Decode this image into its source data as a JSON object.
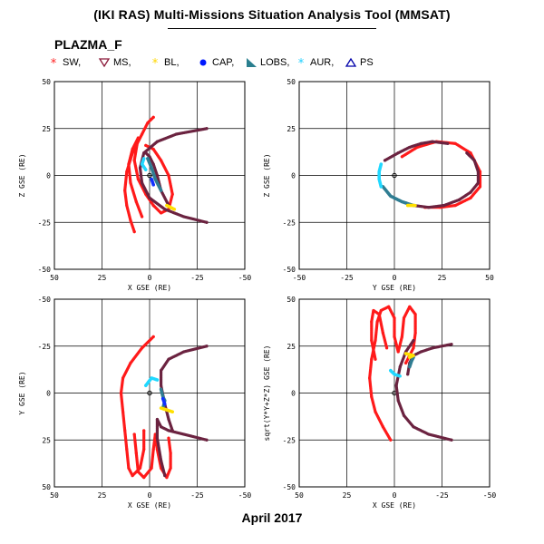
{
  "header": {
    "title": "(IKI RAS) Multi-Missions Situation Analysis Tool (MMSAT)",
    "instrument": "PLAZMA_F",
    "date": "April 2017"
  },
  "legend": [
    {
      "symbol": "star",
      "label": "SW,",
      "color": "#ff2020"
    },
    {
      "symbol": "triangle-down",
      "label": "MS,",
      "color": "#8b1a3a"
    },
    {
      "symbol": "star",
      "label": "BL,",
      "color": "#ffd700"
    },
    {
      "symbol": "dot",
      "label": "CAP,",
      "color": "#0018ff"
    },
    {
      "symbol": "wedge",
      "label": "LOBS,",
      "color": "#2a7f8f"
    },
    {
      "symbol": "asterisk",
      "label": "AUR,",
      "color": "#20d0ff"
    },
    {
      "symbol": "triangle-up",
      "label": "PS",
      "color": "#0000aa"
    }
  ],
  "chart_data": [
    {
      "type": "scatter",
      "xlabel": "X GSE (RE)",
      "ylabel": "Z GSE (RE)",
      "xlim": [
        50,
        -50
      ],
      "ylim": [
        -50,
        50
      ],
      "xticks": [
        50,
        25,
        0,
        -25,
        -50
      ],
      "yticks": [
        -50,
        -25,
        0,
        25,
        50
      ],
      "grid": true,
      "series": [
        {
          "class": "SW",
          "points": [
            [
              8,
              -30
            ],
            [
              10,
              -24
            ],
            [
              12,
              -16
            ],
            [
              13,
              -8
            ],
            [
              12,
              2
            ],
            [
              9,
              12
            ],
            [
              4,
              22
            ],
            [
              1,
              28
            ],
            [
              -2,
              31
            ]
          ]
        },
        {
          "class": "SW",
          "points": [
            [
              4,
              -22
            ],
            [
              7,
              -14
            ],
            [
              10,
              -4
            ],
            [
              11,
              6
            ],
            [
              9,
              14
            ],
            [
              6,
              20
            ],
            [
              8,
              8
            ],
            [
              6,
              -2
            ],
            [
              2,
              -10
            ],
            [
              -2,
              -16
            ],
            [
              -6,
              -20
            ],
            [
              -10,
              -18
            ],
            [
              -12,
              -10
            ],
            [
              -10,
              0
            ],
            [
              -6,
              8
            ],
            [
              -2,
              14
            ],
            [
              2,
              16
            ]
          ]
        },
        {
          "class": "MS",
          "points": [
            [
              -30,
              -25
            ],
            [
              -18,
              -22
            ],
            [
              -8,
              -18
            ],
            [
              0,
              -12
            ],
            [
              4,
              -4
            ],
            [
              5,
              4
            ],
            [
              3,
              12
            ],
            [
              -4,
              18
            ],
            [
              -14,
              22
            ],
            [
              -30,
              25
            ]
          ]
        },
        {
          "class": "MS",
          "points": [
            [
              -10,
              -16
            ],
            [
              -6,
              -8
            ],
            [
              -4,
              0
            ],
            [
              -2,
              6
            ],
            [
              0,
              10
            ],
            [
              2,
              12
            ]
          ]
        },
        {
          "class": "LOBS",
          "points": [
            [
              -6,
              -8
            ],
            [
              -3,
              -2
            ],
            [
              -1,
              4
            ],
            [
              1,
              9
            ]
          ]
        },
        {
          "class": "AUR",
          "points": [
            [
              3,
              9
            ],
            [
              4,
              6
            ],
            [
              2,
              3
            ]
          ]
        },
        {
          "class": "CAP",
          "points": [
            [
              -1,
              -2
            ],
            [
              -2,
              -5
            ]
          ]
        },
        {
          "class": "BL",
          "points": [
            [
              -9,
              -16
            ],
            [
              -11,
              -17
            ],
            [
              -13,
              -18
            ]
          ]
        }
      ]
    },
    {
      "type": "scatter",
      "xlabel": "Y GSE (RE)",
      "ylabel": "Z GSE (RE)",
      "xlim": [
        -50,
        50
      ],
      "ylim": [
        -50,
        50
      ],
      "xticks": [
        -50,
        -25,
        0,
        25,
        50
      ],
      "yticks": [
        -50,
        -25,
        0,
        25,
        50
      ],
      "grid": true,
      "series": [
        {
          "class": "SW",
          "points": [
            [
              4,
              10
            ],
            [
              12,
              15
            ],
            [
              22,
              18
            ],
            [
              32,
              17
            ],
            [
              40,
              12
            ],
            [
              45,
              2
            ],
            [
              45,
              -6
            ],
            [
              40,
              -12
            ],
            [
              32,
              -16
            ],
            [
              24,
              -17
            ],
            [
              16,
              -17
            ]
          ]
        },
        {
          "class": "MS",
          "points": [
            [
              -5,
              8
            ],
            [
              2,
              12
            ],
            [
              8,
              15
            ],
            [
              14,
              17
            ],
            [
              20,
              18
            ],
            [
              28,
              17
            ]
          ]
        },
        {
          "class": "MS",
          "points": [
            [
              10,
              -16
            ],
            [
              18,
              -17
            ],
            [
              26,
              -16
            ],
            [
              34,
              -13
            ],
            [
              40,
              -9
            ],
            [
              44,
              -4
            ],
            [
              44,
              2
            ],
            [
              42,
              8
            ],
            [
              38,
              12
            ]
          ]
        },
        {
          "class": "LOBS",
          "points": [
            [
              -6,
              -6
            ],
            [
              -2,
              -11
            ],
            [
              4,
              -14
            ],
            [
              10,
              -16
            ]
          ]
        },
        {
          "class": "AUR",
          "points": [
            [
              -7,
              6
            ],
            [
              -8,
              2
            ],
            [
              -8,
              -2
            ],
            [
              -7,
              -6
            ]
          ]
        },
        {
          "class": "BL",
          "points": [
            [
              7,
              -16
            ],
            [
              11,
              -16
            ]
          ]
        }
      ]
    },
    {
      "type": "scatter",
      "xlabel": "X GSE (RE)",
      "ylabel": "Y GSE (RE)",
      "xlim": [
        50,
        -50
      ],
      "ylim": [
        50,
        -50
      ],
      "xticks": [
        50,
        25,
        0,
        -25,
        -50
      ],
      "yticks": [
        -50,
        -25,
        0,
        25,
        50
      ],
      "grid": true,
      "series": [
        {
          "class": "SW",
          "points": [
            [
              -2,
              -30
            ],
            [
              4,
              -24
            ],
            [
              10,
              -16
            ],
            [
              14,
              -8
            ],
            [
              15,
              0
            ],
            [
              14,
              10
            ],
            [
              13,
              20
            ],
            [
              12,
              30
            ],
            [
              11,
              40
            ],
            [
              9,
              44
            ],
            [
              5,
              40
            ],
            [
              3,
              30
            ],
            [
              3,
              20
            ]
          ]
        },
        {
          "class": "SW",
          "points": [
            [
              8,
              22
            ],
            [
              7,
              32
            ],
            [
              6,
              42
            ],
            [
              3,
              45
            ],
            [
              -1,
              40
            ],
            [
              -2,
              30
            ],
            [
              -3,
              22
            ],
            [
              -4,
              30
            ],
            [
              -6,
              40
            ],
            [
              -9,
              45
            ],
            [
              -11,
              40
            ],
            [
              -11,
              32
            ],
            [
              -10,
              24
            ]
          ]
        },
        {
          "class": "MS",
          "points": [
            [
              -30,
              -25
            ],
            [
              -18,
              -22
            ],
            [
              -10,
              -18
            ],
            [
              -6,
              -12
            ],
            [
              -6,
              -4
            ],
            [
              -8,
              6
            ],
            [
              -10,
              14
            ],
            [
              -12,
              20
            ]
          ]
        },
        {
          "class": "MS",
          "points": [
            [
              -30,
              25
            ],
            [
              -18,
              22
            ],
            [
              -10,
              20
            ],
            [
              -6,
              18
            ],
            [
              -4,
              14
            ],
            [
              -4,
              24
            ],
            [
              -6,
              36
            ],
            [
              -8,
              44
            ]
          ]
        },
        {
          "class": "AUR",
          "points": [
            [
              2,
              -4
            ],
            [
              -1,
              -8
            ],
            [
              -4,
              -7
            ]
          ]
        },
        {
          "class": "LOBS",
          "points": [
            [
              -6,
              -2
            ],
            [
              -7,
              2
            ],
            [
              -8,
              4
            ],
            [
              -7,
              8
            ]
          ]
        },
        {
          "class": "CAP",
          "points": [
            [
              -7,
              3
            ],
            [
              -8,
              6
            ]
          ]
        },
        {
          "class": "BL",
          "points": [
            [
              -6,
              8
            ],
            [
              -9,
              9
            ],
            [
              -12,
              10
            ]
          ]
        }
      ]
    },
    {
      "type": "scatter",
      "xlabel": "X GSE (RE)",
      "ylabel": "sqrt(Y*Y+Z*Z) GSE (RE)",
      "xlim": [
        50,
        -50
      ],
      "ylim": [
        -50,
        50
      ],
      "xticks": [
        50,
        25,
        0,
        -25,
        -50
      ],
      "yticks": [
        -50,
        -25,
        0,
        25,
        50
      ],
      "grid": true,
      "series": [
        {
          "class": "SW",
          "points": [
            [
              2,
              -25
            ],
            [
              6,
              -18
            ],
            [
              10,
              -10
            ],
            [
              12,
              -2
            ],
            [
              13,
              8
            ],
            [
              12,
              18
            ],
            [
              10,
              28
            ],
            [
              9,
              38
            ],
            [
              7,
              44
            ],
            [
              3,
              46
            ],
            [
              0,
              40
            ],
            [
              0,
              30
            ],
            [
              -2,
              22
            ],
            [
              -4,
              30
            ],
            [
              -5,
              40
            ],
            [
              -8,
              46
            ],
            [
              -11,
              42
            ],
            [
              -11,
              32
            ],
            [
              -10,
              24
            ],
            [
              -6,
              16
            ]
          ]
        },
        {
          "class": "SW",
          "points": [
            [
              10,
              18
            ],
            [
              12,
              28
            ],
            [
              12,
              38
            ],
            [
              11,
              44
            ],
            [
              8,
              42
            ],
            [
              6,
              32
            ],
            [
              4,
              24
            ]
          ]
        },
        {
          "class": "MS",
          "points": [
            [
              -30,
              -25
            ],
            [
              -18,
              -22
            ],
            [
              -10,
              -18
            ],
            [
              -5,
              -12
            ],
            [
              -2,
              -4
            ],
            [
              -1,
              4
            ],
            [
              -3,
              14
            ],
            [
              -6,
              22
            ],
            [
              -10,
              28
            ]
          ]
        },
        {
          "class": "MS",
          "points": [
            [
              -30,
              26
            ],
            [
              -20,
              24
            ],
            [
              -14,
              22
            ],
            [
              -10,
              20
            ],
            [
              -8,
              16
            ],
            [
              -7,
              10
            ]
          ]
        },
        {
          "class": "LOBS",
          "points": [
            [
              -8,
              14
            ],
            [
              -9,
              17
            ],
            [
              -10,
              19
            ]
          ]
        },
        {
          "class": "AUR",
          "points": [
            [
              2,
              12
            ],
            [
              0,
              10
            ],
            [
              -3,
              9
            ]
          ]
        },
        {
          "class": "BL",
          "points": [
            [
              -8,
              19
            ],
            [
              -10,
              20
            ],
            [
              -6,
              21
            ]
          ]
        }
      ]
    }
  ]
}
